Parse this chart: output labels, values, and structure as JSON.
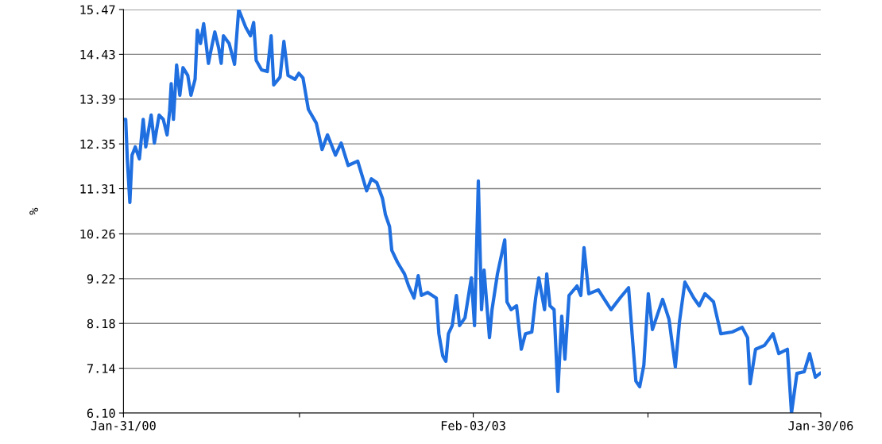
{
  "chart_data": {
    "type": "line",
    "ylabel": "%",
    "x": [
      "2000-01-31",
      "2000-02-07",
      "2000-02-12",
      "2000-02-20",
      "2000-02-27",
      "2000-03-08",
      "2000-03-21",
      "2000-04-02",
      "2000-04-10",
      "2000-04-27",
      "2000-05-07",
      "2000-05-22",
      "2000-06-04",
      "2000-06-16",
      "2000-06-24",
      "2000-06-29",
      "2000-07-06",
      "2000-07-16",
      "2000-07-26",
      "2000-08-05",
      "2000-08-20",
      "2000-08-30",
      "2000-09-12",
      "2000-09-19",
      "2000-09-29",
      "2000-10-09",
      "2000-10-24",
      "2000-10-31",
      "2000-11-13",
      "2000-11-25",
      "2000-12-03",
      "2000-12-10",
      "2000-12-28",
      "2001-01-07",
      "2001-01-14",
      "2001-01-27",
      "2001-02-18",
      "2001-03-05",
      "2001-03-15",
      "2001-03-23",
      "2001-04-09",
      "2001-04-27",
      "2001-05-09",
      "2001-05-17",
      "2001-06-06",
      "2001-06-18",
      "2001-07-01",
      "2001-07-23",
      "2001-08-04",
      "2001-08-17",
      "2001-09-03",
      "2001-09-28",
      "2001-10-16",
      "2001-11-02",
      "2001-11-27",
      "2001-12-15",
      "2002-01-06",
      "2002-02-05",
      "2002-02-18",
      "2002-03-05",
      "2002-03-20",
      "2002-04-06",
      "2002-04-24",
      "2002-05-03",
      "2002-05-16",
      "2002-05-23",
      "2002-06-10",
      "2002-07-02",
      "2002-07-15",
      "2002-08-01",
      "2002-08-14",
      "2002-08-24",
      "2002-09-13",
      "2002-10-10",
      "2002-10-18",
      "2002-10-30",
      "2002-11-09",
      "2002-11-17",
      "2002-11-29",
      "2002-12-12",
      "2002-12-22",
      "2003-01-08",
      "2003-01-28",
      "2003-02-07",
      "2003-02-19",
      "2003-03-01",
      "2003-03-09",
      "2003-03-26",
      "2003-04-03",
      "2003-04-20",
      "2003-05-13",
      "2003-05-20",
      "2003-06-02",
      "2003-06-19",
      "2003-07-04",
      "2003-07-17",
      "2003-08-06",
      "2003-08-18",
      "2003-08-28",
      "2003-09-15",
      "2003-09-22",
      "2003-10-02",
      "2003-10-15",
      "2003-10-27",
      "2003-11-08",
      "2003-11-18",
      "2003-12-01",
      "2003-12-26",
      "2004-01-07",
      "2004-01-17",
      "2004-02-01",
      "2004-03-02",
      "2004-04-11",
      "2004-05-09",
      "2004-06-05",
      "2004-06-18",
      "2004-06-28",
      "2004-07-10",
      "2004-07-23",
      "2004-08-06",
      "2004-08-19",
      "2004-09-20",
      "2004-10-10",
      "2004-10-30",
      "2004-11-12",
      "2004-11-29",
      "2004-12-27",
      "2005-01-13",
      "2005-01-31",
      "2005-02-27",
      "2005-03-22",
      "2005-04-26",
      "2005-05-28",
      "2005-06-14",
      "2005-06-22",
      "2005-07-09",
      "2005-08-06",
      "2005-09-02",
      "2005-09-20",
      "2005-10-17",
      "2005-10-30",
      "2005-11-16",
      "2005-12-09",
      "2005-12-26",
      "2006-01-13",
      "2006-01-28"
    ],
    "series": [
      {
        "color": "#1f6fe0",
        "values": [
          12.92,
          12.92,
          12.0,
          10.99,
          12.09,
          12.28,
          12.0,
          12.92,
          12.28,
          13.02,
          12.37,
          13.02,
          12.92,
          12.56,
          13.11,
          13.75,
          12.92,
          14.18,
          13.48,
          14.12,
          13.94,
          13.48,
          13.85,
          14.99,
          14.68,
          15.14,
          14.22,
          14.49,
          14.95,
          14.58,
          14.22,
          14.86,
          14.68,
          14.4,
          14.2,
          15.47,
          15.06,
          14.86,
          15.17,
          14.29,
          14.07,
          14.03,
          14.86,
          13.72,
          13.9,
          14.73,
          13.94,
          13.85,
          13.99,
          13.88,
          13.15,
          12.83,
          12.22,
          12.56,
          12.09,
          12.37,
          11.85,
          11.95,
          11.63,
          11.26,
          11.54,
          11.45,
          11.08,
          10.71,
          10.43,
          9.88,
          9.6,
          9.33,
          9.05,
          8.77,
          9.29,
          8.83,
          8.9,
          8.77,
          7.94,
          7.43,
          7.3,
          7.94,
          8.13,
          8.83,
          8.13,
          8.31,
          9.24,
          8.13,
          11.49,
          8.5,
          9.42,
          7.85,
          8.5,
          9.33,
          10.12,
          8.68,
          8.5,
          8.59,
          7.58,
          7.94,
          7.98,
          8.77,
          9.24,
          8.5,
          9.33,
          8.59,
          8.5,
          6.6,
          8.35,
          7.35,
          8.83,
          9.05,
          8.83,
          9.94,
          8.87,
          8.96,
          8.5,
          8.77,
          9.01,
          7.76,
          6.84,
          6.71,
          7.21,
          8.87,
          8.04,
          8.74,
          8.28,
          7.17,
          8.22,
          9.14,
          8.77,
          8.59,
          8.87,
          8.68,
          7.94,
          7.98,
          8.09,
          7.85,
          6.78,
          7.58,
          7.67,
          7.94,
          7.48,
          7.58,
          6.1,
          7.02,
          7.06,
          7.48,
          6.93,
          7.02
        ]
      }
    ],
    "xlim": [
      "2000-01-31",
      "2006-01-30"
    ],
    "xticks": [
      {
        "value": "2000-01-31",
        "label": "Jan-31/00"
      },
      {
        "value": "2001-08-06",
        "label": null
      },
      {
        "value": "2003-02-03",
        "label": "Feb-03/03"
      },
      {
        "value": "2004-08-05",
        "label": null
      },
      {
        "value": "2006-01-30",
        "label": "Jan-30/06"
      }
    ],
    "ylim": [
      6.1,
      15.47
    ],
    "yticks": [
      {
        "value": 6.1,
        "label": "6.10"
      },
      7.14,
      8.18,
      9.22,
      10.26,
      11.31,
      12.35,
      13.39,
      14.43,
      15.47
    ],
    "grid": "y",
    "legend": false,
    "marker": "none",
    "line_style": "solid"
  }
}
